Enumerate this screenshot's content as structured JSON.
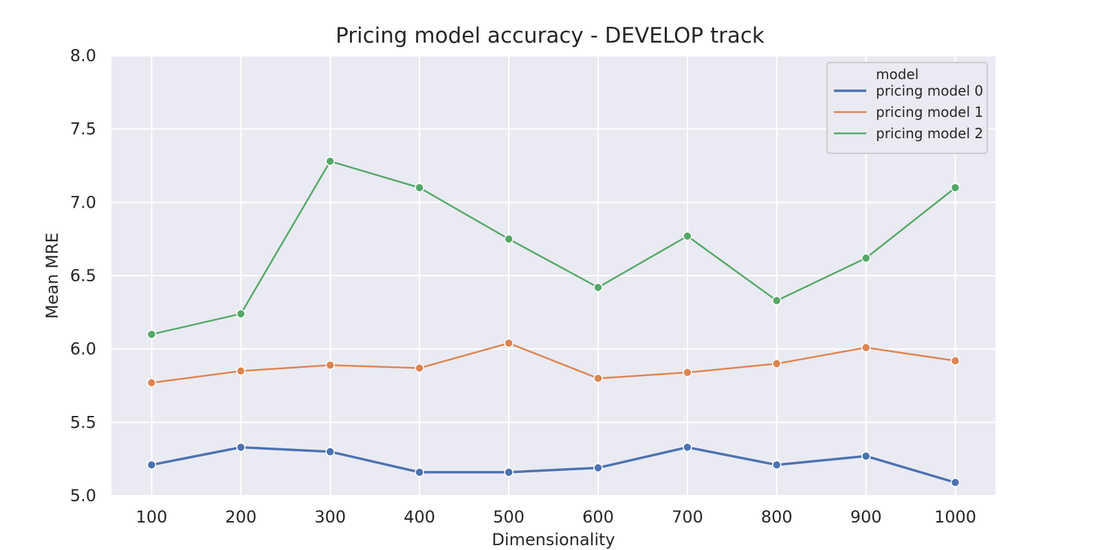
{
  "chart_data": {
    "type": "line",
    "title": "Pricing model accuracy - DEVELOP track",
    "xlabel": "Dimensionality",
    "ylabel": "Mean MRE",
    "x": [
      100,
      200,
      300,
      400,
      500,
      600,
      700,
      800,
      900,
      1000
    ],
    "xticks": [
      "100",
      "200",
      "300",
      "400",
      "500",
      "600",
      "700",
      "800",
      "900",
      "1000"
    ],
    "yticks": [
      "5.0",
      "5.5",
      "6.0",
      "6.5",
      "7.0",
      "7.5",
      "8.0"
    ],
    "xlim": [
      55,
      1045
    ],
    "ylim": [
      5.0,
      8.0
    ],
    "grid": true,
    "legend": {
      "title": "model",
      "position": "top-right"
    },
    "series": [
      {
        "name": "pricing model 0",
        "color": "#4C72B0",
        "values": [
          5.21,
          5.33,
          5.3,
          5.16,
          5.16,
          5.19,
          5.33,
          5.21,
          5.27,
          5.09
        ]
      },
      {
        "name": "pricing model 1",
        "color": "#DD8452",
        "values": [
          5.77,
          5.85,
          5.89,
          5.87,
          6.04,
          5.8,
          5.84,
          5.9,
          6.01,
          5.92
        ]
      },
      {
        "name": "pricing model 2",
        "color": "#55A868",
        "values": [
          6.1,
          6.24,
          7.28,
          7.1,
          6.75,
          6.42,
          6.77,
          6.33,
          6.62,
          7.1
        ]
      }
    ],
    "plot_background": "#EAEAF2"
  }
}
